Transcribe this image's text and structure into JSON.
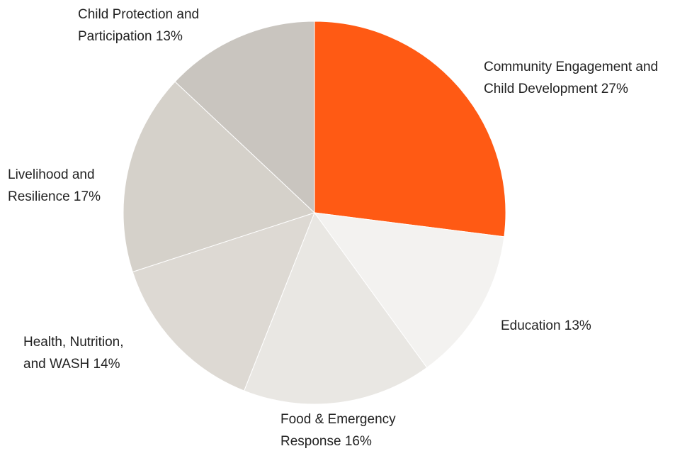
{
  "chart_data": {
    "type": "pie",
    "title": "",
    "slices": [
      {
        "label_lines": [
          "Community Engagement and",
          "Child Development 27%"
        ],
        "value": 27,
        "color": "#FF5A14"
      },
      {
        "label_lines": [
          "Education  13%"
        ],
        "value": 13,
        "color": "#F3F2F0"
      },
      {
        "label_lines": [
          "Food & Emergency",
          "Response 16%"
        ],
        "value": 16,
        "color": "#E9E7E3"
      },
      {
        "label_lines": [
          "Health, Nutrition,",
          "and WASH 14%"
        ],
        "value": 14,
        "color": "#DDD9D3"
      },
      {
        "label_lines": [
          "Livelihood and",
          "Resilience  17%"
        ],
        "value": 17,
        "color": "#D5D1CA"
      },
      {
        "label_lines": [
          "Child Protection and",
          "Participation 13%"
        ],
        "value": 13,
        "color": "#C9C5BF"
      }
    ]
  }
}
